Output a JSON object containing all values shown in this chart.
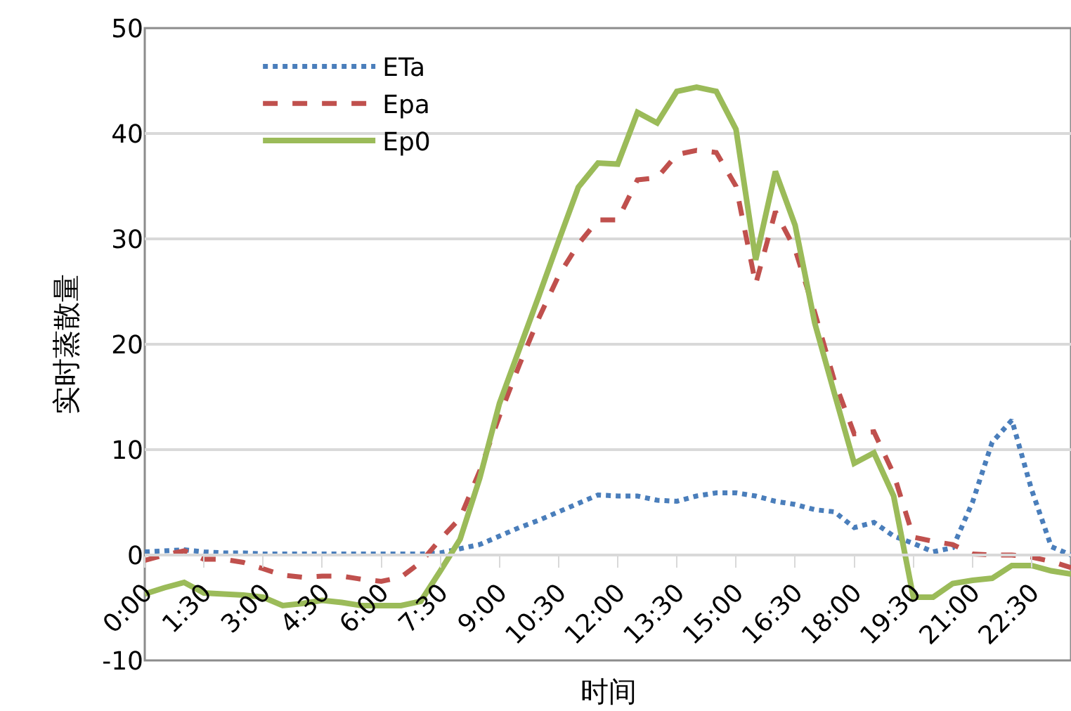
{
  "chart_data": {
    "type": "line",
    "xlabel": "时间",
    "ylabel": "实时蒸散量",
    "categories": [
      "0:00",
      null,
      null,
      "1:30",
      null,
      null,
      "3:00",
      null,
      null,
      "4:30",
      null,
      null,
      "6:00",
      null,
      null,
      "7:30",
      null,
      null,
      "9:00",
      null,
      null,
      "10:30",
      null,
      null,
      "12:00",
      null,
      null,
      "13:30",
      null,
      null,
      "15:00",
      null,
      null,
      "16:30",
      null,
      null,
      "18:00",
      null,
      null,
      "19:30",
      null,
      null,
      "21:00",
      null,
      null,
      "22:30",
      null,
      null
    ],
    "series": [
      {
        "name": "ETa",
        "color": "#4a7ebb",
        "line_style": "dotted",
        "values": [
          0.3,
          0.4,
          0.5,
          0.3,
          0.2,
          0.2,
          0.1,
          0.1,
          0.1,
          0.1,
          0.1,
          0.1,
          0.1,
          0.1,
          0.1,
          0.2,
          0.6,
          1.0,
          1.8,
          2.6,
          3.3,
          4.1,
          4.9,
          5.7,
          5.6,
          5.6,
          5.2,
          5.1,
          5.6,
          5.9,
          5.9,
          5.6,
          5.1,
          4.8,
          4.3,
          4.1,
          2.6,
          3.1,
          1.8,
          1.1,
          0.3,
          0.7,
          5.0,
          10.7,
          12.8,
          6.2,
          0.8,
          0.0
        ]
      },
      {
        "name": "Epa",
        "color": "#c0504d",
        "line_style": "dashed",
        "values": [
          -0.5,
          0.0,
          0.4,
          -0.4,
          -0.4,
          -0.7,
          -1.3,
          -1.9,
          -2.1,
          -2.0,
          -2.0,
          -2.3,
          -2.5,
          -2.1,
          -0.7,
          1.5,
          3.5,
          8.0,
          13.2,
          18.0,
          22.5,
          26.5,
          29.5,
          31.8,
          31.8,
          35.6,
          35.8,
          38.0,
          38.4,
          38.2,
          35.0,
          25.7,
          32.6,
          29.0,
          23.0,
          16.5,
          11.5,
          11.7,
          7.7,
          1.7,
          1.3,
          1.0,
          0.1,
          0.0,
          0.0,
          -0.2,
          -0.6,
          -1.2
        ]
      },
      {
        "name": "Ep0",
        "color": "#9bbb59",
        "line_style": "solid",
        "values": [
          -3.7,
          -3.1,
          -2.6,
          -3.6,
          -3.7,
          -3.8,
          -4.0,
          -4.8,
          -4.6,
          -4.3,
          -4.5,
          -4.8,
          -4.8,
          -4.8,
          -4.4,
          -1.5,
          1.5,
          7.3,
          14.4,
          19.5,
          24.6,
          29.8,
          34.9,
          37.2,
          37.1,
          42.0,
          41.0,
          44.0,
          44.4,
          44.0,
          40.4,
          28.0,
          36.4,
          31.3,
          22.0,
          15.3,
          8.7,
          9.7,
          5.6,
          -4.0,
          -4.0,
          -2.7,
          -2.4,
          -2.2,
          -1.0,
          -1.0,
          -1.5,
          -1.8
        ]
      }
    ],
    "ylim": [
      -10,
      50
    ],
    "yticks": [
      -10,
      0,
      10,
      20,
      30,
      40,
      50
    ],
    "grid": "y",
    "legend": "top left",
    "marker": "none"
  }
}
